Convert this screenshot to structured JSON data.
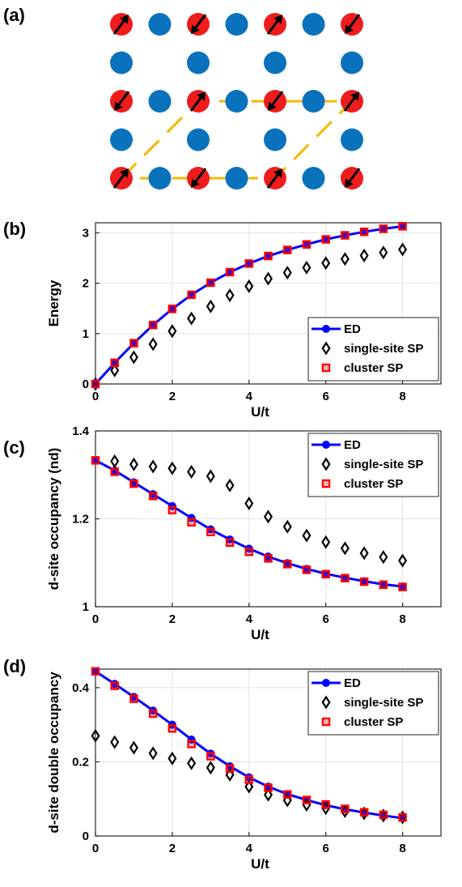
{
  "lattice": {
    "label": "(a)",
    "rows": [
      [
        "spin",
        "plain",
        "spin",
        "plain",
        "spin",
        "plain",
        "spin"
      ],
      [
        "plain",
        "",
        "plain",
        "",
        "plain",
        "",
        "plain"
      ],
      [
        "spin",
        "plain",
        "spin",
        "plain",
        "spin",
        "plain",
        "spin"
      ],
      [
        "plain",
        "",
        "plain",
        "",
        "plain",
        "",
        "plain"
      ],
      [
        "spin",
        "plain",
        "spin",
        "plain",
        "spin",
        "plain",
        "spin"
      ]
    ],
    "spin_dirs": [
      [
        "up",
        "",
        "down",
        "",
        "up",
        "",
        "down"
      ],
      [
        "",
        "",
        "",
        "",
        "",
        "",
        ""
      ],
      [
        "down",
        "",
        "up",
        "",
        "down",
        "",
        "up"
      ],
      [
        "",
        "",
        "",
        "",
        "",
        "",
        ""
      ],
      [
        "up",
        "",
        "down",
        "",
        "up",
        "",
        "down"
      ]
    ],
    "colors": {
      "spin_site": "#ee1c1c",
      "plain_site": "#0a72bd",
      "cluster": "#f5b800"
    }
  },
  "chart_data": [
    {
      "panel": "(b)",
      "type": "line",
      "title": "",
      "xlabel": "U/t",
      "ylabel": "Energy",
      "xlim": [
        0,
        9
      ],
      "ylim": [
        0,
        3.2
      ],
      "xticks": [
        0,
        2,
        4,
        6,
        8
      ],
      "yticks": [
        0,
        1,
        2,
        3
      ],
      "grid": true,
      "legend": "bottom-right",
      "series": [
        {
          "name": "ED",
          "style": "line-circle",
          "color": "#0000ff",
          "x": [
            0,
            0.5,
            1,
            1.5,
            2,
            2.5,
            3,
            3.5,
            4,
            4.5,
            5,
            5.5,
            6,
            6.5,
            7,
            7.5,
            8
          ],
          "y": [
            0,
            0.42,
            0.81,
            1.17,
            1.49,
            1.77,
            2.01,
            2.22,
            2.39,
            2.54,
            2.66,
            2.77,
            2.87,
            2.95,
            3.02,
            3.08,
            3.13
          ]
        },
        {
          "name": "single-site SP",
          "style": "diamond",
          "color": "#000000",
          "x": [
            0,
            0.5,
            1,
            1.5,
            2,
            2.5,
            3,
            3.5,
            4,
            4.5,
            5,
            5.5,
            6,
            6.5,
            7,
            7.5,
            8
          ],
          "y": [
            0,
            0.27,
            0.53,
            0.79,
            1.05,
            1.3,
            1.54,
            1.76,
            1.94,
            2.09,
            2.21,
            2.31,
            2.4,
            2.48,
            2.55,
            2.61,
            2.67
          ]
        },
        {
          "name": "cluster SP",
          "style": "square",
          "color": "#ff0000",
          "x": [
            0,
            0.5,
            1,
            1.5,
            2,
            2.5,
            3,
            3.5,
            4,
            4.5,
            5,
            5.5,
            6,
            6.5,
            7,
            7.5,
            8
          ],
          "y": [
            0,
            0.42,
            0.81,
            1.17,
            1.49,
            1.77,
            2.01,
            2.22,
            2.39,
            2.54,
            2.66,
            2.77,
            2.87,
            2.95,
            3.02,
            3.08,
            3.13
          ]
        }
      ]
    },
    {
      "panel": "(c)",
      "type": "line",
      "title": "",
      "xlabel": "U/t",
      "ylabel": "d-site occupancy (nd)",
      "xlim": [
        0,
        9
      ],
      "ylim": [
        1,
        1.4
      ],
      "xticks": [
        0,
        2,
        4,
        6,
        8
      ],
      "yticks": [
        1,
        1.2,
        1.4
      ],
      "grid": true,
      "legend": "top-right",
      "series": [
        {
          "name": "ED",
          "style": "line-circle",
          "color": "#0000ff",
          "x": [
            0,
            0.5,
            1,
            1.5,
            2,
            2.5,
            3,
            3.5,
            4,
            4.5,
            5,
            5.5,
            6,
            6.5,
            7,
            7.5,
            8
          ],
          "y": [
            1.333,
            1.31,
            1.283,
            1.256,
            1.229,
            1.202,
            1.176,
            1.153,
            1.132,
            1.114,
            1.099,
            1.086,
            1.075,
            1.066,
            1.058,
            1.051,
            1.046
          ]
        },
        {
          "name": "single-site SP",
          "style": "diamond",
          "color": "#000000",
          "x": [
            0.5,
            1,
            1.5,
            2,
            2.5,
            3,
            3.5,
            4,
            4.5,
            5,
            5.5,
            6,
            6.5,
            7,
            7.5,
            8
          ],
          "y": [
            1.331,
            1.324,
            1.319,
            1.315,
            1.307,
            1.297,
            1.276,
            1.235,
            1.205,
            1.182,
            1.162,
            1.147,
            1.133,
            1.122,
            1.113,
            1.105
          ]
        },
        {
          "name": "cluster SP",
          "style": "square",
          "color": "#ff0000",
          "x": [
            0,
            0.5,
            1,
            1.5,
            2,
            2.5,
            3,
            3.5,
            4,
            4.5,
            5,
            5.5,
            6,
            6.5,
            7,
            7.5,
            8
          ],
          "y": [
            1.333,
            1.307,
            1.28,
            1.252,
            1.22,
            1.192,
            1.17,
            1.146,
            1.125,
            1.11,
            1.097,
            1.084,
            1.074,
            1.065,
            1.057,
            1.05,
            1.045
          ]
        }
      ]
    },
    {
      "panel": "(d)",
      "type": "line",
      "title": "",
      "xlabel": "U/t",
      "ylabel": "d-site double occupancy",
      "xlim": [
        0,
        9
      ],
      "ylim": [
        0,
        0.45
      ],
      "xticks": [
        0,
        2,
        4,
        6,
        8
      ],
      "yticks": [
        0,
        0.2,
        0.4
      ],
      "grid": true,
      "legend": "top-right",
      "series": [
        {
          "name": "ED",
          "style": "line-circle",
          "color": "#0000ff",
          "x": [
            0,
            0.5,
            1,
            1.5,
            2,
            2.5,
            3,
            3.5,
            4,
            4.5,
            5,
            5.5,
            6,
            6.5,
            7,
            7.5,
            8
          ],
          "y": [
            0.444,
            0.41,
            0.375,
            0.338,
            0.3,
            0.26,
            0.222,
            0.188,
            0.158,
            0.133,
            0.113,
            0.097,
            0.083,
            0.072,
            0.063,
            0.055,
            0.048
          ]
        },
        {
          "name": "single-site SP",
          "style": "diamond",
          "color": "#000000",
          "x": [
            0,
            0.5,
            1,
            1.5,
            2,
            2.5,
            3,
            3.5,
            4,
            4.5,
            5,
            5.5,
            6,
            6.5,
            7,
            7.5,
            8
          ],
          "y": [
            0.27,
            0.253,
            0.238,
            0.223,
            0.209,
            0.196,
            0.184,
            0.165,
            0.133,
            0.111,
            0.096,
            0.084,
            0.075,
            0.067,
            0.061,
            0.055,
            0.05
          ]
        },
        {
          "name": "cluster SP",
          "style": "square",
          "color": "#ff0000",
          "x": [
            0,
            0.5,
            1,
            1.5,
            2,
            2.5,
            3,
            3.5,
            4,
            4.5,
            5,
            5.5,
            6,
            6.5,
            7,
            7.5,
            8
          ],
          "y": [
            0.444,
            0.405,
            0.37,
            0.33,
            0.29,
            0.248,
            0.215,
            0.182,
            0.152,
            0.13,
            0.112,
            0.097,
            0.085,
            0.073,
            0.064,
            0.057,
            0.05
          ]
        }
      ]
    }
  ]
}
